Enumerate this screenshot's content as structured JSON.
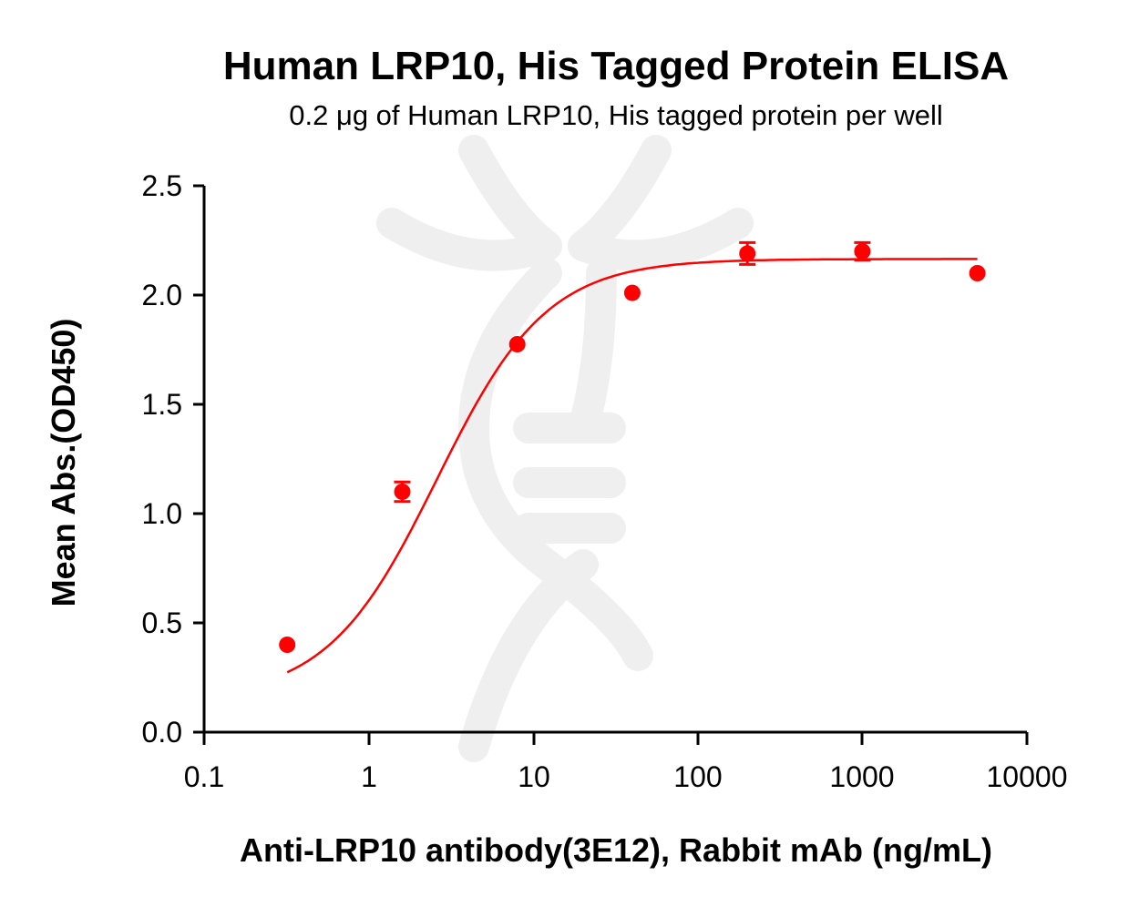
{
  "chart_data": {
    "type": "scatter",
    "title": "Human LRP10, His Tagged Protein ELISA",
    "subtitle": "0.2 μg of Human LRP10, His tagged protein per well",
    "xlabel": "Anti-LRP10 antibody(3E12), Rabbit mAb (ng/mL)",
    "ylabel": "Mean Abs.(OD450)",
    "xscale": "log",
    "xlim": [
      0.1,
      10000
    ],
    "ylim": [
      0.0,
      2.5
    ],
    "x_ticks": [
      "0.1",
      "1",
      "10",
      "100",
      "1000",
      "10000"
    ],
    "y_ticks": [
      "0.0",
      "0.5",
      "1.0",
      "1.5",
      "2.0",
      "2.5"
    ],
    "grid": false,
    "legend": null,
    "series": [
      {
        "name": "Human LRP10, His Tagged Protein",
        "color": "#ff0000",
        "x": [
          0.32,
          1.6,
          8,
          40,
          200,
          1000,
          5000
        ],
        "y": [
          0.4,
          1.1,
          1.775,
          2.01,
          2.19,
          2.2,
          2.1
        ],
        "error": [
          0.0,
          0.045,
          0.0,
          0.0,
          0.05,
          0.04,
          0.0
        ],
        "fit": "4-parameter logistic curve"
      }
    ],
    "fit_curve": {
      "bottom": 0.15,
      "top": 2.165,
      "ec50": 2.6,
      "hill": 1.3,
      "x_range": [
        0.32,
        5000
      ]
    }
  },
  "labels": {
    "title": "Human LRP10, His Tagged Protein ELISA",
    "subtitle": "0.2 μg of Human LRP10, His tagged protein per well",
    "xlabel": "Anti-LRP10 antibody(3E12), Rabbit mAb (ng/mL)",
    "ylabel": "Mean Abs.(OD450)",
    "x_ticks": [
      "0.1",
      "1",
      "10",
      "100",
      "1000",
      "10000"
    ],
    "y_ticks": [
      "0.0",
      "0.5",
      "1.0",
      "1.5",
      "2.0",
      "2.5"
    ]
  }
}
